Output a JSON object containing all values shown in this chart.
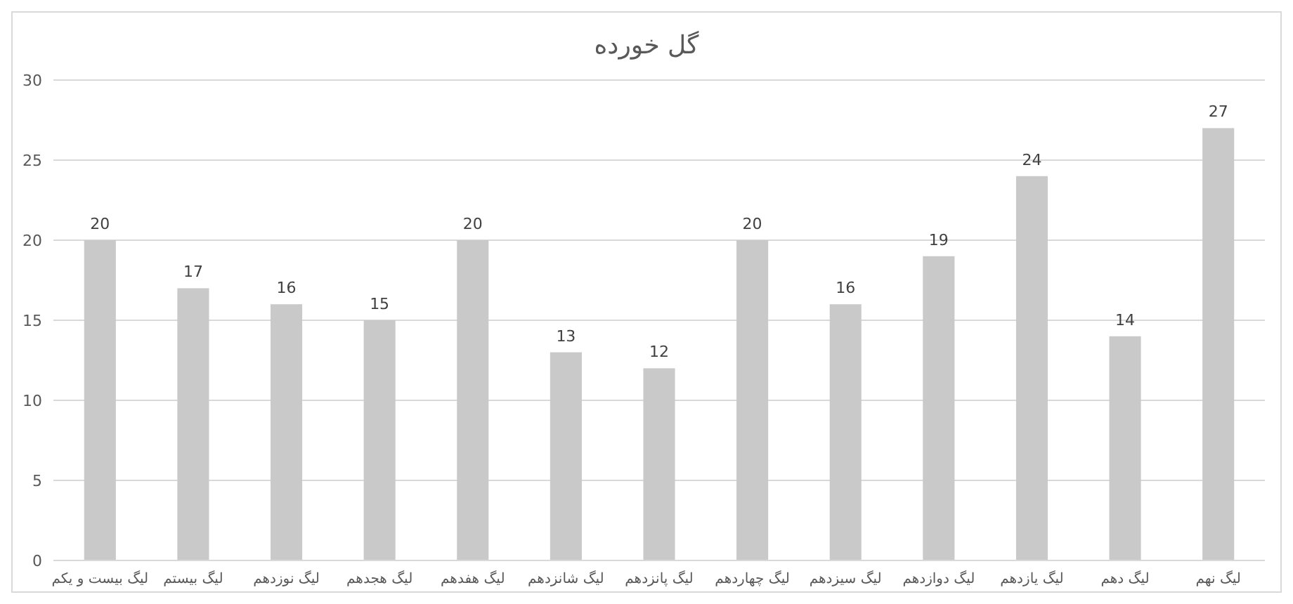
{
  "chart_data": {
    "type": "bar",
    "title": "گل خورده",
    "categories": [
      "لیگ بیست و یکم",
      "لیگ بیستم",
      "لیگ نوزدهم",
      "لیگ هجدهم",
      "لیگ هفدهم",
      "لیگ شانزدهم",
      "لیگ پانزدهم",
      "لیگ چهاردهم",
      "لیگ سیزدهم",
      "لیگ دوازدهم",
      "لیگ یازدهم",
      "لیگ دهم",
      "لیگ نهم"
    ],
    "values": [
      20,
      17,
      16,
      15,
      20,
      13,
      12,
      20,
      16,
      19,
      24,
      14,
      27
    ],
    "color": "#c9c9c9",
    "ylim": [
      0,
      30
    ],
    "yticks": [
      0,
      5,
      10,
      15,
      20,
      25,
      30
    ],
    "grid": true,
    "data_labels": true
  }
}
